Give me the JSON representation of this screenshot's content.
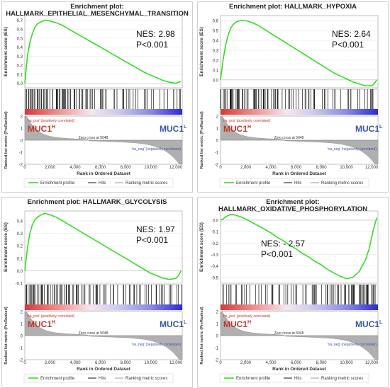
{
  "axis_labels": {
    "es": "Enrichment score (ES)",
    "metric": "Ranked list metric (PreRanked)",
    "rank": "Rank in Ordered Dataset"
  },
  "legend": {
    "profile": "Enrichment profile",
    "hits": "Hits",
    "metric": "Ranking metric scores"
  },
  "annotations": {
    "pos": "'na_pos' (positively correlated)",
    "neg": "'na_neg' (negatively correlated)",
    "zero_cross": "Zero cross at 5048",
    "muc_high_base": "MUC1",
    "muc_high_sup": "H",
    "muc_low_base": "MUC1",
    "muc_low_sup": "L"
  },
  "colors": {
    "profile": "#33dd22",
    "muc_high": "#c0392b",
    "muc_low": "#3a55a8",
    "metric_fill": "#b0b0b0",
    "border": "#cfcfcf"
  },
  "chart_data": [
    {
      "type": "line",
      "title_line1": "Enrichment plot:",
      "title_line2": "HALLMARK_EPITHELIAL_MESENCHYMAL_TRANSITION",
      "nes": "NES: 2.98",
      "pval": "P<0.001",
      "x": [
        0,
        200,
        400,
        600,
        800,
        1000,
        1300,
        1600,
        2000,
        2500,
        3000,
        3500,
        4000,
        4500,
        5000,
        5500,
        6000,
        6500,
        7000,
        7500,
        8000,
        8500,
        9000,
        9500,
        10000,
        10500,
        11000,
        11500,
        12000,
        12200,
        12400
      ],
      "es": [
        0,
        0.3,
        0.45,
        0.55,
        0.62,
        0.66,
        0.68,
        0.7,
        0.69,
        0.67,
        0.64,
        0.6,
        0.56,
        0.52,
        0.48,
        0.44,
        0.4,
        0.36,
        0.32,
        0.28,
        0.24,
        0.2,
        0.16,
        0.12,
        0.09,
        0.06,
        0.03,
        0.01,
        0.0,
        0.01,
        0.02
      ],
      "ylim": [
        -0.05,
        0.75
      ],
      "yticks": [
        "0.7",
        "0.6",
        "0.5",
        "0.4",
        "0.3",
        "0.2",
        "0.1",
        "0.0"
      ],
      "ytick_values": [
        0.7,
        0.6,
        0.5,
        0.4,
        0.3,
        0.2,
        0.1,
        0.0
      ],
      "hits_density": [
        0.9,
        0.9,
        0.85,
        0.8,
        0.75,
        0.7,
        0.65,
        0.6,
        0.5,
        0.45,
        0.4,
        0.35,
        0.3,
        0.3,
        0.25,
        0.25,
        0.2,
        0.2,
        0.15,
        0.15,
        0.2,
        0.25
      ],
      "xticks": [
        "0",
        "2,000",
        "4,000",
        "6,000",
        "8,000",
        "10,000",
        "12,000"
      ],
      "xtick_values": [
        0,
        2000,
        4000,
        6000,
        8000,
        10000,
        12000
      ],
      "xmax": 12500,
      "metric_ylim": [
        -2,
        2
      ],
      "metric_yticks": [
        "2",
        "1",
        "0",
        "-1",
        "-2"
      ]
    },
    {
      "type": "line",
      "title_line1": "Enrichment plot: HALLMARK_HYPOXIA",
      "title_line2": "",
      "nes": "NES: 2.64",
      "pval": "P<0.001",
      "x": [
        0,
        200,
        400,
        600,
        800,
        1000,
        1300,
        1600,
        2000,
        2500,
        3000,
        3500,
        4000,
        4500,
        5000,
        5500,
        6000,
        6500,
        7000,
        7500,
        8000,
        8500,
        9000,
        9500,
        10000,
        10500,
        11000,
        11500,
        12000,
        12200,
        12400
      ],
      "es": [
        0,
        0.2,
        0.35,
        0.45,
        0.52,
        0.56,
        0.59,
        0.6,
        0.6,
        0.58,
        0.55,
        0.51,
        0.47,
        0.43,
        0.39,
        0.35,
        0.31,
        0.27,
        0.23,
        0.19,
        0.15,
        0.11,
        0.07,
        0.04,
        0.01,
        -0.02,
        -0.04,
        -0.06,
        -0.06,
        -0.04,
        0.0
      ],
      "ylim": [
        -0.08,
        0.65
      ],
      "yticks": [
        "0.6",
        "0.5",
        "0.4",
        "0.3",
        "0.2",
        "0.1",
        "0.0"
      ],
      "ytick_values": [
        0.6,
        0.5,
        0.4,
        0.3,
        0.2,
        0.1,
        0.0
      ],
      "hits_density": [
        0.9,
        0.85,
        0.8,
        0.75,
        0.7,
        0.6,
        0.55,
        0.5,
        0.45,
        0.4,
        0.35,
        0.35,
        0.3,
        0.3,
        0.25,
        0.25,
        0.2,
        0.2,
        0.2,
        0.2,
        0.25,
        0.3
      ],
      "xticks": [
        "0",
        "2,000",
        "4,000",
        "6,000",
        "8,000",
        "10,000",
        "12,000"
      ],
      "xtick_values": [
        0,
        2000,
        4000,
        6000,
        8000,
        10000,
        12000
      ],
      "xmax": 12500,
      "metric_ylim": [
        -2,
        2
      ],
      "metric_yticks": [
        "2",
        "1",
        "0",
        "-1",
        "-2"
      ]
    },
    {
      "type": "line",
      "title_line1": "Enrichment plot: HALLMARK_GLYCOLYSIS",
      "title_line2": "",
      "nes": "NES: 1.97",
      "pval": "P<0.001",
      "x": [
        0,
        200,
        400,
        600,
        800,
        1000,
        1300,
        1600,
        2000,
        2500,
        3000,
        3500,
        4000,
        4500,
        5000,
        5500,
        6000,
        6500,
        7000,
        7500,
        8000,
        8500,
        9000,
        9500,
        10000,
        10500,
        11000,
        11500,
        12000,
        12200,
        12400
      ],
      "es": [
        0,
        0.18,
        0.3,
        0.37,
        0.41,
        0.43,
        0.45,
        0.46,
        0.45,
        0.43,
        0.4,
        0.37,
        0.34,
        0.31,
        0.28,
        0.25,
        0.22,
        0.19,
        0.16,
        0.13,
        0.1,
        0.07,
        0.04,
        0.01,
        -0.02,
        -0.04,
        -0.06,
        -0.07,
        -0.06,
        -0.04,
        0.0
      ],
      "ylim": [
        -0.1,
        0.48
      ],
      "yticks": [
        "0.4",
        "0.3",
        "0.2",
        "0.1",
        "0.0",
        "-0.1"
      ],
      "ytick_values": [
        0.4,
        0.3,
        0.2,
        0.1,
        0.0,
        -0.1
      ],
      "hits_density": [
        0.85,
        0.8,
        0.75,
        0.7,
        0.65,
        0.6,
        0.55,
        0.5,
        0.45,
        0.45,
        0.4,
        0.35,
        0.35,
        0.3,
        0.3,
        0.25,
        0.25,
        0.25,
        0.3,
        0.3,
        0.35,
        0.35
      ],
      "xticks": [
        "0",
        "2,000",
        "4,000",
        "6,000",
        "8,000",
        "10,000",
        "12,000"
      ],
      "xtick_values": [
        0,
        2000,
        4000,
        6000,
        8000,
        10000,
        12000
      ],
      "xmax": 12500,
      "metric_ylim": [
        -2,
        2
      ],
      "metric_yticks": [
        "2",
        "1",
        "0",
        "-1",
        "-2"
      ]
    },
    {
      "type": "line",
      "title_line1": "Enrichment plot:",
      "title_line2": "HALLMARK_OXIDATIVE_PHOSPHORYLATION",
      "nes": "NES: - 2.57",
      "pval": "P<0.001",
      "x": [
        0,
        200,
        400,
        600,
        800,
        1000,
        1300,
        1600,
        2000,
        2500,
        3000,
        3500,
        4000,
        4500,
        5000,
        5500,
        6000,
        6500,
        7000,
        7500,
        8000,
        8500,
        9000,
        9500,
        10000,
        10500,
        11000,
        11500,
        11800,
        12100,
        12400
      ],
      "es": [
        0,
        0.01,
        0.03,
        0.04,
        0.05,
        0.05,
        0.04,
        0.03,
        0.01,
        -0.02,
        -0.05,
        -0.08,
        -0.11,
        -0.15,
        -0.18,
        -0.22,
        -0.25,
        -0.29,
        -0.32,
        -0.36,
        -0.39,
        -0.43,
        -0.46,
        -0.49,
        -0.51,
        -0.5,
        -0.45,
        -0.35,
        -0.25,
        -0.1,
        0.02
      ],
      "ylim": [
        -0.55,
        0.08
      ],
      "yticks": [
        "0.0",
        "-0.1",
        "-0.2",
        "-0.3",
        "-0.4",
        "-0.5"
      ],
      "ytick_values": [
        0.0,
        -0.1,
        -0.2,
        -0.3,
        -0.4,
        -0.5
      ],
      "hits_density": [
        0.3,
        0.3,
        0.25,
        0.25,
        0.2,
        0.2,
        0.2,
        0.25,
        0.25,
        0.3,
        0.3,
        0.35,
        0.35,
        0.4,
        0.45,
        0.5,
        0.55,
        0.6,
        0.7,
        0.75,
        0.85,
        0.9
      ],
      "xticks": [
        "0",
        "2,000",
        "4,000",
        "6,000",
        "8,000",
        "10,000",
        "12,000"
      ],
      "xtick_values": [
        0,
        2000,
        4000,
        6000,
        8000,
        10000,
        12000
      ],
      "xmax": 12500,
      "metric_ylim": [
        -2,
        2
      ],
      "metric_yticks": [
        "2",
        "1",
        "0",
        "-1",
        "-2"
      ]
    }
  ]
}
